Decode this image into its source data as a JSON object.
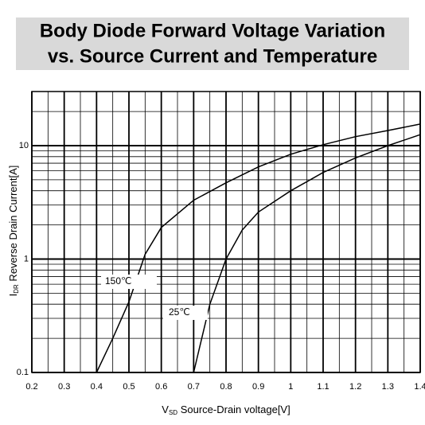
{
  "chart_data": {
    "type": "line",
    "title": [
      "Body Diode Forward Voltage Variation",
      "vs. Source Current and Temperature"
    ],
    "xlabel_symbol": "V",
    "xlabel_sub": "SD",
    "xlabel": "Source-Drain voltage[V]",
    "ylabel_symbol": "I",
    "ylabel_sub": "DR",
    "ylabel": "Reverse Drain Current[A]",
    "annotations": [
      "150℃",
      "25℃"
    ],
    "xlim": [
      0.2,
      1.4
    ],
    "xticks": [
      0.2,
      0.3,
      0.4,
      0.5,
      0.6,
      0.7,
      0.8,
      0.9,
      1.0,
      1.1,
      1.2,
      1.3,
      1.4
    ],
    "ylim": [
      0.1,
      30
    ],
    "yticks": [
      0.1,
      1,
      10
    ],
    "ylog": true,
    "grid": true,
    "series": [
      {
        "name": "150℃",
        "color": "#000000",
        "x": [
          0.4,
          0.45,
          0.5,
          0.55,
          0.6,
          0.7,
          0.8,
          0.9,
          1.0,
          1.1,
          1.2,
          1.3,
          1.4
        ],
        "values": [
          0.1,
          0.2,
          0.42,
          1.1,
          1.9,
          3.3,
          4.7,
          6.5,
          8.4,
          10.2,
          12,
          13.6,
          15.5
        ]
      },
      {
        "name": "25℃",
        "color": "#000000",
        "x": [
          0.7,
          0.75,
          0.8,
          0.85,
          0.9,
          1.0,
          1.1,
          1.2,
          1.3,
          1.4
        ],
        "values": [
          0.1,
          0.4,
          1.0,
          1.8,
          2.6,
          4.0,
          5.8,
          7.8,
          10,
          12.5
        ]
      }
    ]
  }
}
